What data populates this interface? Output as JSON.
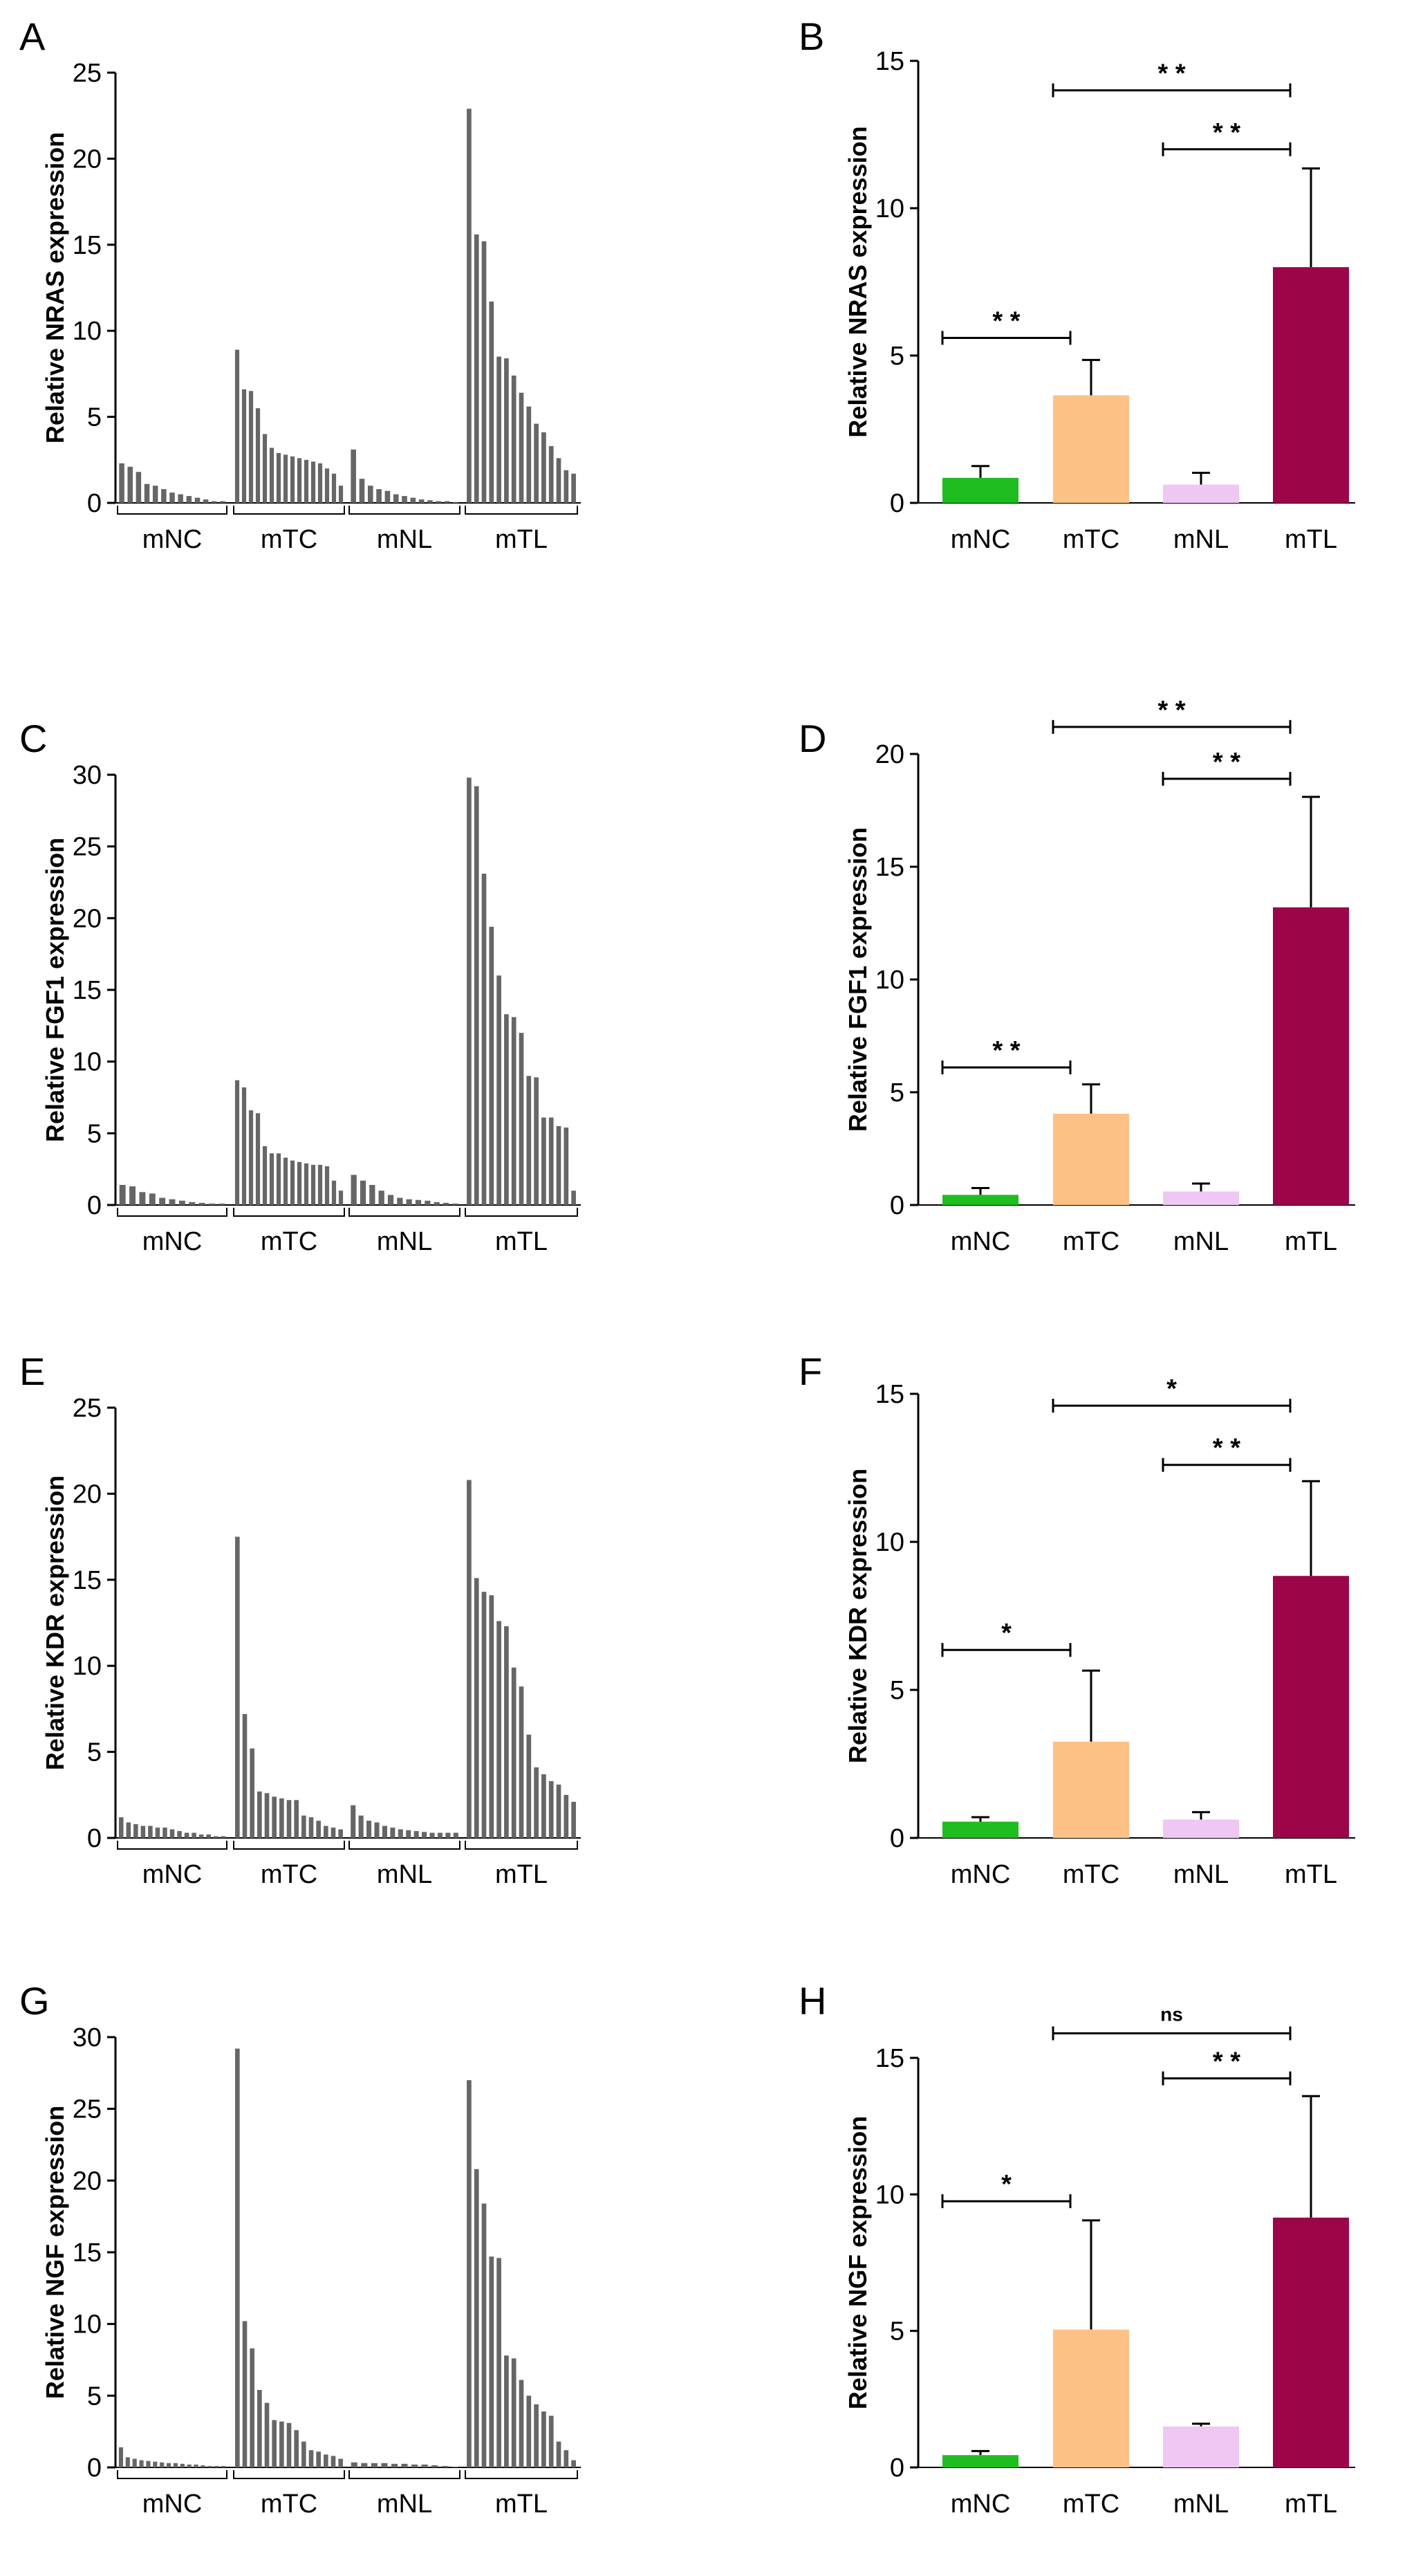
{
  "figure": {
    "panels": [
      "A",
      "B",
      "C",
      "D",
      "E",
      "F",
      "G",
      "H"
    ]
  },
  "chart_data": [
    {
      "panel": "A",
      "type": "bar",
      "ylabel": "Relative NRAS expression",
      "ylim": [
        0,
        25
      ],
      "yticks": [
        0,
        5,
        10,
        15,
        20,
        25
      ],
      "groups": [
        {
          "label": "mNC",
          "values": [
            2.3,
            2.1,
            1.8,
            1.1,
            1.0,
            0.8,
            0.6,
            0.5,
            0.4,
            0.3,
            0.2,
            0.1,
            0.1
          ]
        },
        {
          "label": "mTC",
          "values": [
            8.9,
            6.6,
            6.5,
            5.5,
            4.0,
            3.2,
            2.9,
            2.8,
            2.7,
            2.6,
            2.5,
            2.4,
            2.3,
            2.0,
            1.7,
            1.0
          ]
        },
        {
          "label": "mNL",
          "values": [
            3.1,
            1.4,
            1.0,
            0.8,
            0.7,
            0.5,
            0.4,
            0.3,
            0.2,
            0.15,
            0.1,
            0.1,
            0.05
          ]
        },
        {
          "label": "mTL",
          "values": [
            22.9,
            15.6,
            15.2,
            11.7,
            8.5,
            8.4,
            7.4,
            6.4,
            5.6,
            4.6,
            4.1,
            3.3,
            2.6,
            1.9,
            1.7
          ]
        }
      ]
    },
    {
      "panel": "B",
      "type": "bar",
      "ylabel": "Relative NRAS expression",
      "ylim": [
        0,
        15
      ],
      "yticks": [
        0,
        5,
        10,
        15
      ],
      "categories": [
        "mNC",
        "mTC",
        "mNL",
        "mTL"
      ],
      "values": [
        0.85,
        3.65,
        0.62,
        8.0
      ],
      "errors": [
        0.4,
        1.2,
        0.4,
        3.35
      ],
      "colors": [
        "#1fbd1f",
        "#fec185",
        "#eec7f3",
        "#9c0649"
      ],
      "significance": [
        {
          "from": 1,
          "to": 3,
          "label": "* *",
          "level": 14.0
        },
        {
          "from": 2,
          "to": 3,
          "label": "* *",
          "level": 12.0
        },
        {
          "from": 0,
          "to": 1,
          "label": "* *",
          "level": 5.6
        }
      ]
    },
    {
      "panel": "C",
      "type": "bar",
      "ylabel": "Relative FGF1 expression",
      "ylim": [
        0,
        30
      ],
      "yticks": [
        0,
        5,
        10,
        15,
        20,
        25,
        30
      ],
      "groups": [
        {
          "label": "mNC",
          "values": [
            1.4,
            1.3,
            0.9,
            0.8,
            0.5,
            0.4,
            0.3,
            0.2,
            0.15,
            0.1,
            0.1
          ]
        },
        {
          "label": "mTC",
          "values": [
            8.7,
            8.2,
            6.6,
            6.4,
            4.1,
            3.6,
            3.6,
            3.3,
            3.1,
            3.0,
            2.9,
            2.8,
            2.8,
            2.7,
            1.7,
            1.0
          ]
        },
        {
          "label": "mNL",
          "values": [
            2.1,
            1.7,
            1.4,
            1.0,
            0.7,
            0.5,
            0.4,
            0.35,
            0.3,
            0.2,
            0.15,
            0.1
          ]
        },
        {
          "label": "mTL",
          "values": [
            29.8,
            29.2,
            23.1,
            19.4,
            16.0,
            13.3,
            13.1,
            12.0,
            9.0,
            8.9,
            6.1,
            6.1,
            5.5,
            5.4,
            1.0
          ]
        }
      ]
    },
    {
      "panel": "D",
      "type": "bar",
      "ylabel": "Relative FGF1 expression",
      "ylim": [
        0,
        20
      ],
      "yticks": [
        0,
        5,
        10,
        15,
        20
      ],
      "categories": [
        "mNC",
        "mTC",
        "mNL",
        "mTL"
      ],
      "values": [
        0.45,
        4.05,
        0.6,
        13.2
      ],
      "errors": [
        0.3,
        1.3,
        0.35,
        4.9
      ],
      "colors": [
        "#1fbd1f",
        "#fec185",
        "#eec7f3",
        "#9c0649"
      ],
      "significance": [
        {
          "from": 1,
          "to": 3,
          "label": "* *",
          "level": 21.2
        },
        {
          "from": 2,
          "to": 3,
          "label": "* *",
          "level": 18.9
        },
        {
          "from": 0,
          "to": 1,
          "label": "* *",
          "level": 6.1
        }
      ]
    },
    {
      "panel": "E",
      "type": "bar",
      "ylabel": "Relative KDR expression",
      "ylim": [
        0,
        25
      ],
      "yticks": [
        0,
        5,
        10,
        15,
        20,
        25
      ],
      "groups": [
        {
          "label": "mNC",
          "values": [
            1.2,
            0.9,
            0.8,
            0.7,
            0.7,
            0.6,
            0.6,
            0.5,
            0.4,
            0.3,
            0.3,
            0.2,
            0.2,
            0.1,
            0.1
          ]
        },
        {
          "label": "mTC",
          "values": [
            17.5,
            7.2,
            5.2,
            2.7,
            2.6,
            2.4,
            2.3,
            2.2,
            2.2,
            1.3,
            1.2,
            1.0,
            0.7,
            0.6,
            0.5
          ]
        },
        {
          "label": "mNL",
          "values": [
            1.9,
            1.3,
            1.0,
            0.9,
            0.7,
            0.6,
            0.5,
            0.45,
            0.4,
            0.35,
            0.3,
            0.3,
            0.3,
            0.3
          ]
        },
        {
          "label": "mTL",
          "values": [
            20.8,
            15.1,
            14.3,
            14.1,
            12.6,
            12.3,
            9.9,
            8.8,
            6.0,
            4.1,
            3.7,
            3.3,
            3.1,
            2.5,
            2.1
          ]
        }
      ]
    },
    {
      "panel": "F",
      "type": "bar",
      "ylabel": "Relative KDR expression",
      "ylim": [
        0,
        15
      ],
      "yticks": [
        0,
        5,
        10,
        15
      ],
      "categories": [
        "mNC",
        "mTC",
        "mNL",
        "mTL"
      ],
      "values": [
        0.55,
        3.25,
        0.62,
        8.85
      ],
      "errors": [
        0.15,
        2.4,
        0.25,
        3.2
      ],
      "colors": [
        "#1fbd1f",
        "#fec185",
        "#eec7f3",
        "#9c0649"
      ],
      "significance": [
        {
          "from": 1,
          "to": 3,
          "label": "*",
          "level": 14.6
        },
        {
          "from": 2,
          "to": 3,
          "label": "* *",
          "level": 12.6
        },
        {
          "from": 0,
          "to": 1,
          "label": "*",
          "level": 6.35
        }
      ]
    },
    {
      "panel": "G",
      "type": "bar",
      "ylabel": "Relative NGF expression",
      "ylim": [
        0,
        30
      ],
      "yticks": [
        0,
        5,
        10,
        15,
        20,
        25,
        30
      ],
      "groups": [
        {
          "label": "mNC",
          "values": [
            1.4,
            0.7,
            0.6,
            0.5,
            0.45,
            0.4,
            0.35,
            0.3,
            0.3,
            0.25,
            0.2,
            0.2,
            0.15,
            0.1,
            0.1,
            0.1
          ]
        },
        {
          "label": "mTC",
          "values": [
            29.2,
            10.2,
            8.3,
            5.4,
            4.5,
            3.3,
            3.2,
            3.1,
            2.6,
            1.8,
            1.2,
            1.1,
            0.9,
            0.8,
            0.6
          ]
        },
        {
          "label": "mNL",
          "values": [
            0.35,
            0.3,
            0.3,
            0.3,
            0.25,
            0.25,
            0.2,
            0.2,
            0.15,
            0.1,
            0.05
          ]
        },
        {
          "label": "mTL",
          "values": [
            27.0,
            20.8,
            18.4,
            14.7,
            14.6,
            7.8,
            7.6,
            6.1,
            5.0,
            4.4,
            3.9,
            3.6,
            1.8,
            1.2,
            0.5
          ]
        }
      ]
    },
    {
      "panel": "H",
      "type": "bar",
      "ylabel": "Relative NGF expression",
      "ylim": [
        0,
        15
      ],
      "yticks": [
        0,
        5,
        10,
        15
      ],
      "categories": [
        "mNC",
        "mTC",
        "mNL",
        "mTL"
      ],
      "values": [
        0.45,
        5.05,
        1.5,
        9.15
      ],
      "errors": [
        0.15,
        4.0,
        0.1,
        4.45
      ],
      "colors": [
        "#1fbd1f",
        "#fec185",
        "#eec7f3",
        "#9c0649"
      ],
      "significance": [
        {
          "from": 1,
          "to": 3,
          "label": "ns",
          "level": 15.9
        },
        {
          "from": 2,
          "to": 3,
          "label": "* *",
          "level": 14.25
        },
        {
          "from": 0,
          "to": 1,
          "label": "*",
          "level": 9.75
        }
      ]
    }
  ]
}
